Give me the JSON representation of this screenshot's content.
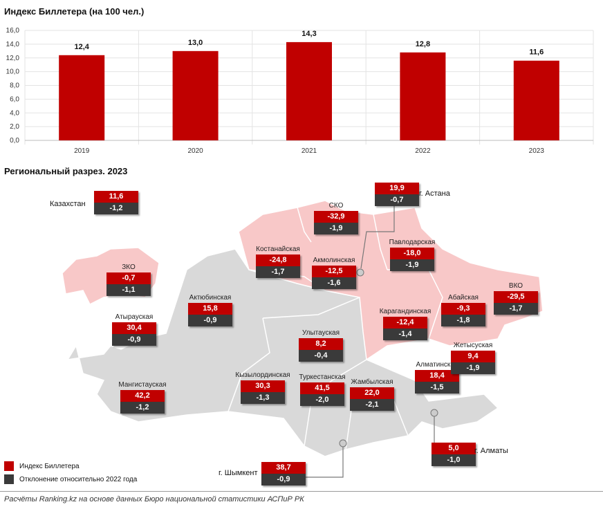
{
  "chart_data": [
    {
      "type": "bar",
      "title": "Индекс Биллетера (на 100 чел.)",
      "categories": [
        "2019",
        "2020",
        "2021",
        "2022",
        "2023"
      ],
      "values": [
        12.4,
        13.0,
        14.3,
        12.8,
        11.6
      ],
      "value_labels": [
        "12,4",
        "13,0",
        "14,3",
        "12,8",
        "11,6"
      ],
      "ylim": [
        0,
        16
      ],
      "yticks": [
        "0,0",
        "2,0",
        "4,0",
        "6,0",
        "8,0",
        "10,0",
        "12,0",
        "14,0",
        "16,0"
      ],
      "grid": true,
      "colors": {
        "bar": "#c00000"
      }
    },
    {
      "type": "table",
      "title": "Региональный разрез. 2023",
      "national": {
        "name": "Казахстан",
        "value": "11,6",
        "delta": "-1,2"
      },
      "regions": [
        {
          "name": "ЗКО",
          "value": "-0,7",
          "delta": "-1,1"
        },
        {
          "name": "Атырауская",
          "value": "30,4",
          "delta": "-0,9"
        },
        {
          "name": "Мангистауская",
          "value": "42,2",
          "delta": "-1,2"
        },
        {
          "name": "Актюбинская",
          "value": "15,8",
          "delta": "-0,9"
        },
        {
          "name": "Костанайская",
          "value": "-24,8",
          "delta": "-1,7"
        },
        {
          "name": "СКО",
          "value": "-32,9",
          "delta": "-1,9"
        },
        {
          "name": "Акмолинская",
          "value": "-12,5",
          "delta": "-1,6"
        },
        {
          "name": "Павлодарская",
          "value": "-18,0",
          "delta": "-1,9"
        },
        {
          "name": "Карагандинская",
          "value": "-12,4",
          "delta": "-1,4"
        },
        {
          "name": "Абайская",
          "value": "-9,3",
          "delta": "-1,8"
        },
        {
          "name": "ВКО",
          "value": "-29,5",
          "delta": "-1,7"
        },
        {
          "name": "Улытауская",
          "value": "8,2",
          "delta": "-0,4"
        },
        {
          "name": "Кызылординская",
          "value": "30,3",
          "delta": "-1,3"
        },
        {
          "name": "Туркестанская",
          "value": "41,5",
          "delta": "-2,0"
        },
        {
          "name": "Жамбылская",
          "value": "22,0",
          "delta": "-2,1"
        },
        {
          "name": "Алматинская",
          "value": "18,4",
          "delta": "-1,5"
        },
        {
          "name": "Жетысуская",
          "value": "9,4",
          "delta": "-1,9"
        }
      ],
      "cities": [
        {
          "name": "г. Астана",
          "value": "19,9",
          "delta": "-0,7"
        },
        {
          "name": "г. Алматы",
          "value": "5,0",
          "delta": "-1,0"
        },
        {
          "name": "г. Шымкент",
          "value": "38,7",
          "delta": "-0,9"
        }
      ],
      "legend": [
        "Индекс Биллетера",
        "Отклонение относительно 2022 года"
      ],
      "colors": {
        "value": "#c00000",
        "delta": "#3a3a3a",
        "negative_region": "#f8c8c8",
        "positive_region": "#d9d9d9"
      }
    }
  ],
  "source": "Расчёты Ranking.kz на основе данных Бюро национальной статистики АСПиР РК"
}
